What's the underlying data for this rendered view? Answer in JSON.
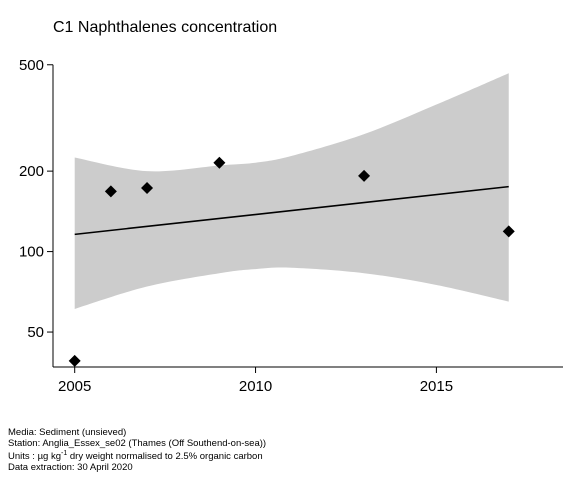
{
  "chart_data": {
    "type": "scatter",
    "title": "C1 Naphthalenes concentration",
    "xlabel": "",
    "ylabel": "",
    "y_scale": "log",
    "xlim": [
      2004.4,
      2018.5
    ],
    "ylim": [
      37,
      530
    ],
    "x_ticks": [
      2005,
      2010,
      2015
    ],
    "y_ticks": [
      50,
      100,
      200,
      500
    ],
    "grid": false,
    "points": {
      "x": [
        2005,
        2006,
        2007,
        2009,
        2013,
        2017
      ],
      "y": [
        39,
        168,
        173,
        215,
        192,
        119
      ]
    },
    "trend": {
      "x": [
        2005,
        2017
      ],
      "y": [
        116,
        175
      ]
    },
    "band": {
      "x": [
        2005,
        2007,
        2009,
        2010,
        2011,
        2013,
        2015,
        2017
      ],
      "lower": [
        61,
        74,
        83,
        86,
        87,
        83,
        75,
        65
      ],
      "upper": [
        225,
        200,
        210,
        215,
        228,
        275,
        355,
        465
      ]
    },
    "colors": {
      "band": "#cccccc",
      "trend": "#000000",
      "points": "#000000"
    }
  },
  "footer": {
    "media": "Media: Sediment (unsieved)",
    "station": "Station: Anglia_Essex_se02 (Thames (Off Southend-on-sea))",
    "units_prefix": "Units : ",
    "units_unit": "µg kg",
    "units_exp": "-1",
    "units_suffix": " dry weight normalised to 2.5% organic carbon",
    "extraction": "Data extraction: 30 April 2020"
  }
}
